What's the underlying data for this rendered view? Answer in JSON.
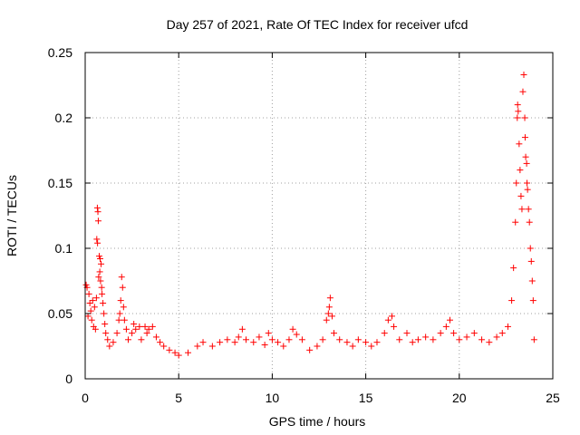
{
  "chart_data": {
    "type": "scatter",
    "title": "Day 257 of 2021, Rate Of TEC Index for receiver ufcd",
    "xlabel": "GPS time / hours",
    "ylabel": "ROTI / TECUs",
    "xlim": [
      0,
      25
    ],
    "ylim": [
      0,
      0.25
    ],
    "xticks": [
      "0",
      "5",
      "10",
      "15",
      "20",
      "25"
    ],
    "yticks": [
      "0",
      "0.05",
      "0.1",
      "0.15",
      "0.2",
      "0.25"
    ],
    "grid": true,
    "legend": "none",
    "marker": "plus",
    "color": "#ff0000",
    "series": [
      {
        "values": [
          [
            0.05,
            0.072
          ],
          [
            0.1,
            0.07
          ],
          [
            0.2,
            0.065
          ],
          [
            0.25,
            0.058
          ],
          [
            0.3,
            0.052
          ],
          [
            0.35,
            0.045
          ],
          [
            0.4,
            0.06
          ],
          [
            0.5,
            0.055
          ],
          [
            0.15,
            0.048
          ],
          [
            0.45,
            0.04
          ],
          [
            0.55,
            0.038
          ],
          [
            0.6,
            0.062
          ],
          [
            0.65,
            0.131
          ],
          [
            0.68,
            0.128
          ],
          [
            0.7,
            0.121
          ],
          [
            0.62,
            0.107
          ],
          [
            0.66,
            0.104
          ],
          [
            0.75,
            0.094
          ],
          [
            0.8,
            0.092
          ],
          [
            0.85,
            0.088
          ],
          [
            0.78,
            0.082
          ],
          [
            0.72,
            0.078
          ],
          [
            0.82,
            0.075
          ],
          [
            0.88,
            0.07
          ],
          [
            0.9,
            0.065
          ],
          [
            0.95,
            0.058
          ],
          [
            1.0,
            0.05
          ],
          [
            1.05,
            0.042
          ],
          [
            1.1,
            0.035
          ],
          [
            1.2,
            0.03
          ],
          [
            1.3,
            0.025
          ],
          [
            1.5,
            0.028
          ],
          [
            1.7,
            0.035
          ],
          [
            1.8,
            0.045
          ],
          [
            1.85,
            0.05
          ],
          [
            1.9,
            0.06
          ],
          [
            1.95,
            0.078
          ],
          [
            2.0,
            0.07
          ],
          [
            2.05,
            0.055
          ],
          [
            2.1,
            0.045
          ],
          [
            2.2,
            0.038
          ],
          [
            2.3,
            0.03
          ],
          [
            2.5,
            0.035
          ],
          [
            2.6,
            0.042
          ],
          [
            2.7,
            0.038
          ],
          [
            2.9,
            0.04
          ],
          [
            3.0,
            0.03
          ],
          [
            3.2,
            0.04
          ],
          [
            3.3,
            0.035
          ],
          [
            3.4,
            0.038
          ],
          [
            3.6,
            0.04
          ],
          [
            3.8,
            0.032
          ],
          [
            4.0,
            0.028
          ],
          [
            4.2,
            0.025
          ],
          [
            4.5,
            0.022
          ],
          [
            4.8,
            0.02
          ],
          [
            5.0,
            0.018
          ],
          [
            5.5,
            0.02
          ],
          [
            6.0,
            0.025
          ],
          [
            6.3,
            0.028
          ],
          [
            6.8,
            0.025
          ],
          [
            7.2,
            0.028
          ],
          [
            7.6,
            0.03
          ],
          [
            8.0,
            0.028
          ],
          [
            8.2,
            0.032
          ],
          [
            8.4,
            0.038
          ],
          [
            8.6,
            0.03
          ],
          [
            9.0,
            0.028
          ],
          [
            9.3,
            0.032
          ],
          [
            9.6,
            0.026
          ],
          [
            9.8,
            0.035
          ],
          [
            10.0,
            0.03
          ],
          [
            10.3,
            0.028
          ],
          [
            10.6,
            0.025
          ],
          [
            10.9,
            0.03
          ],
          [
            11.1,
            0.038
          ],
          [
            11.3,
            0.034
          ],
          [
            11.6,
            0.03
          ],
          [
            12.0,
            0.022
          ],
          [
            12.4,
            0.025
          ],
          [
            12.7,
            0.03
          ],
          [
            12.9,
            0.045
          ],
          [
            13.0,
            0.05
          ],
          [
            13.05,
            0.055
          ],
          [
            13.1,
            0.062
          ],
          [
            13.2,
            0.048
          ],
          [
            13.3,
            0.035
          ],
          [
            13.6,
            0.03
          ],
          [
            14.0,
            0.028
          ],
          [
            14.3,
            0.025
          ],
          [
            14.6,
            0.03
          ],
          [
            15.0,
            0.028
          ],
          [
            15.3,
            0.025
          ],
          [
            15.6,
            0.028
          ],
          [
            16.0,
            0.035
          ],
          [
            16.2,
            0.045
          ],
          [
            16.4,
            0.048
          ],
          [
            16.5,
            0.04
          ],
          [
            16.8,
            0.03
          ],
          [
            17.2,
            0.035
          ],
          [
            17.5,
            0.028
          ],
          [
            17.8,
            0.03
          ],
          [
            18.2,
            0.032
          ],
          [
            18.6,
            0.03
          ],
          [
            19.0,
            0.035
          ],
          [
            19.3,
            0.04
          ],
          [
            19.5,
            0.045
          ],
          [
            19.7,
            0.035
          ],
          [
            20.0,
            0.03
          ],
          [
            20.4,
            0.032
          ],
          [
            20.8,
            0.035
          ],
          [
            21.2,
            0.03
          ],
          [
            21.6,
            0.028
          ],
          [
            22.0,
            0.032
          ],
          [
            22.3,
            0.035
          ],
          [
            22.6,
            0.04
          ],
          [
            22.8,
            0.06
          ],
          [
            22.9,
            0.085
          ],
          [
            23.0,
            0.12
          ],
          [
            23.05,
            0.15
          ],
          [
            23.1,
            0.2
          ],
          [
            23.12,
            0.21
          ],
          [
            23.15,
            0.205
          ],
          [
            23.2,
            0.18
          ],
          [
            23.25,
            0.16
          ],
          [
            23.3,
            0.14
          ],
          [
            23.35,
            0.13
          ],
          [
            23.4,
            0.22
          ],
          [
            23.45,
            0.233
          ],
          [
            23.5,
            0.2
          ],
          [
            23.52,
            0.185
          ],
          [
            23.55,
            0.17
          ],
          [
            23.6,
            0.165
          ],
          [
            23.62,
            0.15
          ],
          [
            23.65,
            0.145
          ],
          [
            23.7,
            0.13
          ],
          [
            23.75,
            0.12
          ],
          [
            23.8,
            0.1
          ],
          [
            23.85,
            0.09
          ],
          [
            23.9,
            0.075
          ],
          [
            23.95,
            0.06
          ],
          [
            24.0,
            0.03
          ]
        ]
      }
    ]
  }
}
